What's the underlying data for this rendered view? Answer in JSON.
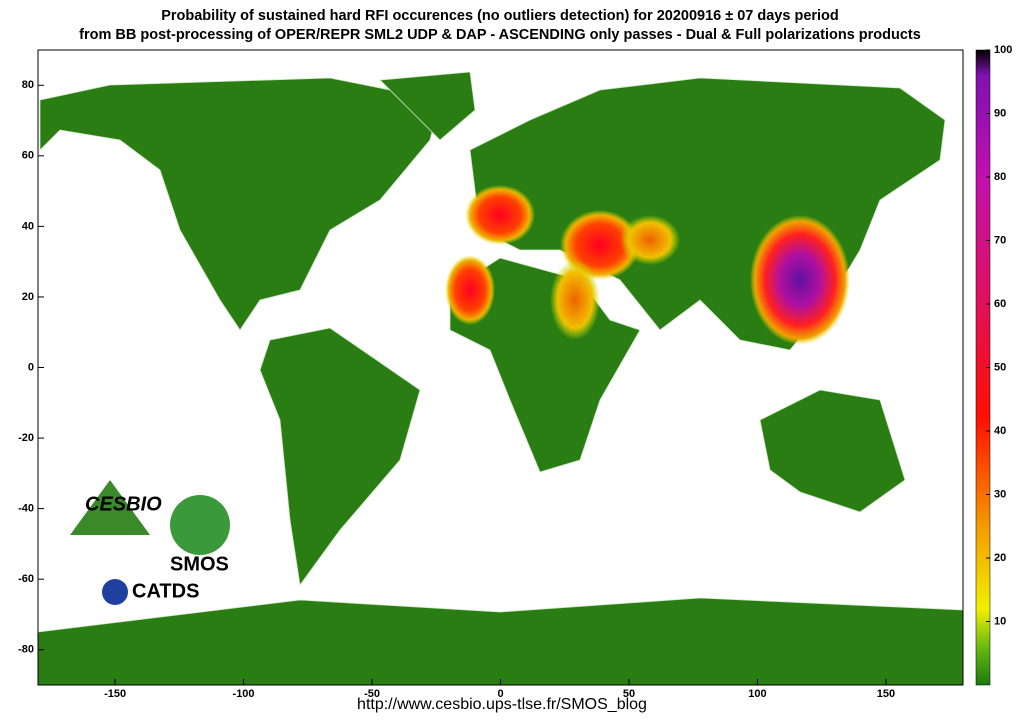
{
  "title": [
    "Probability of sustained hard RFI occurences (no outliers detection) for 20200916 ± 07 days period",
    "from BB post-processing of OPER/REPR SML2 UDP & DAP - ASCENDING only passes - Dual & Full polarizations products"
  ],
  "map": {
    "xlim": [
      -180,
      180
    ],
    "ylim": [
      -90,
      90
    ],
    "xticks": [
      -150,
      -100,
      -50,
      0,
      50,
      100,
      150
    ],
    "yticks": [
      -80,
      -60,
      -40,
      -20,
      0,
      20,
      40,
      60,
      80
    ]
  },
  "colorbar": {
    "lim": [
      0,
      100
    ],
    "ticks": [
      10,
      20,
      30,
      40,
      50,
      60,
      70,
      80,
      90,
      100
    ]
  },
  "logos": {
    "cesbio": "CESBIO",
    "smos": "SMOS",
    "catds": "CATDS"
  },
  "footer": "http://www.cesbio.ups-tlse.fr/SMOS_blog"
}
